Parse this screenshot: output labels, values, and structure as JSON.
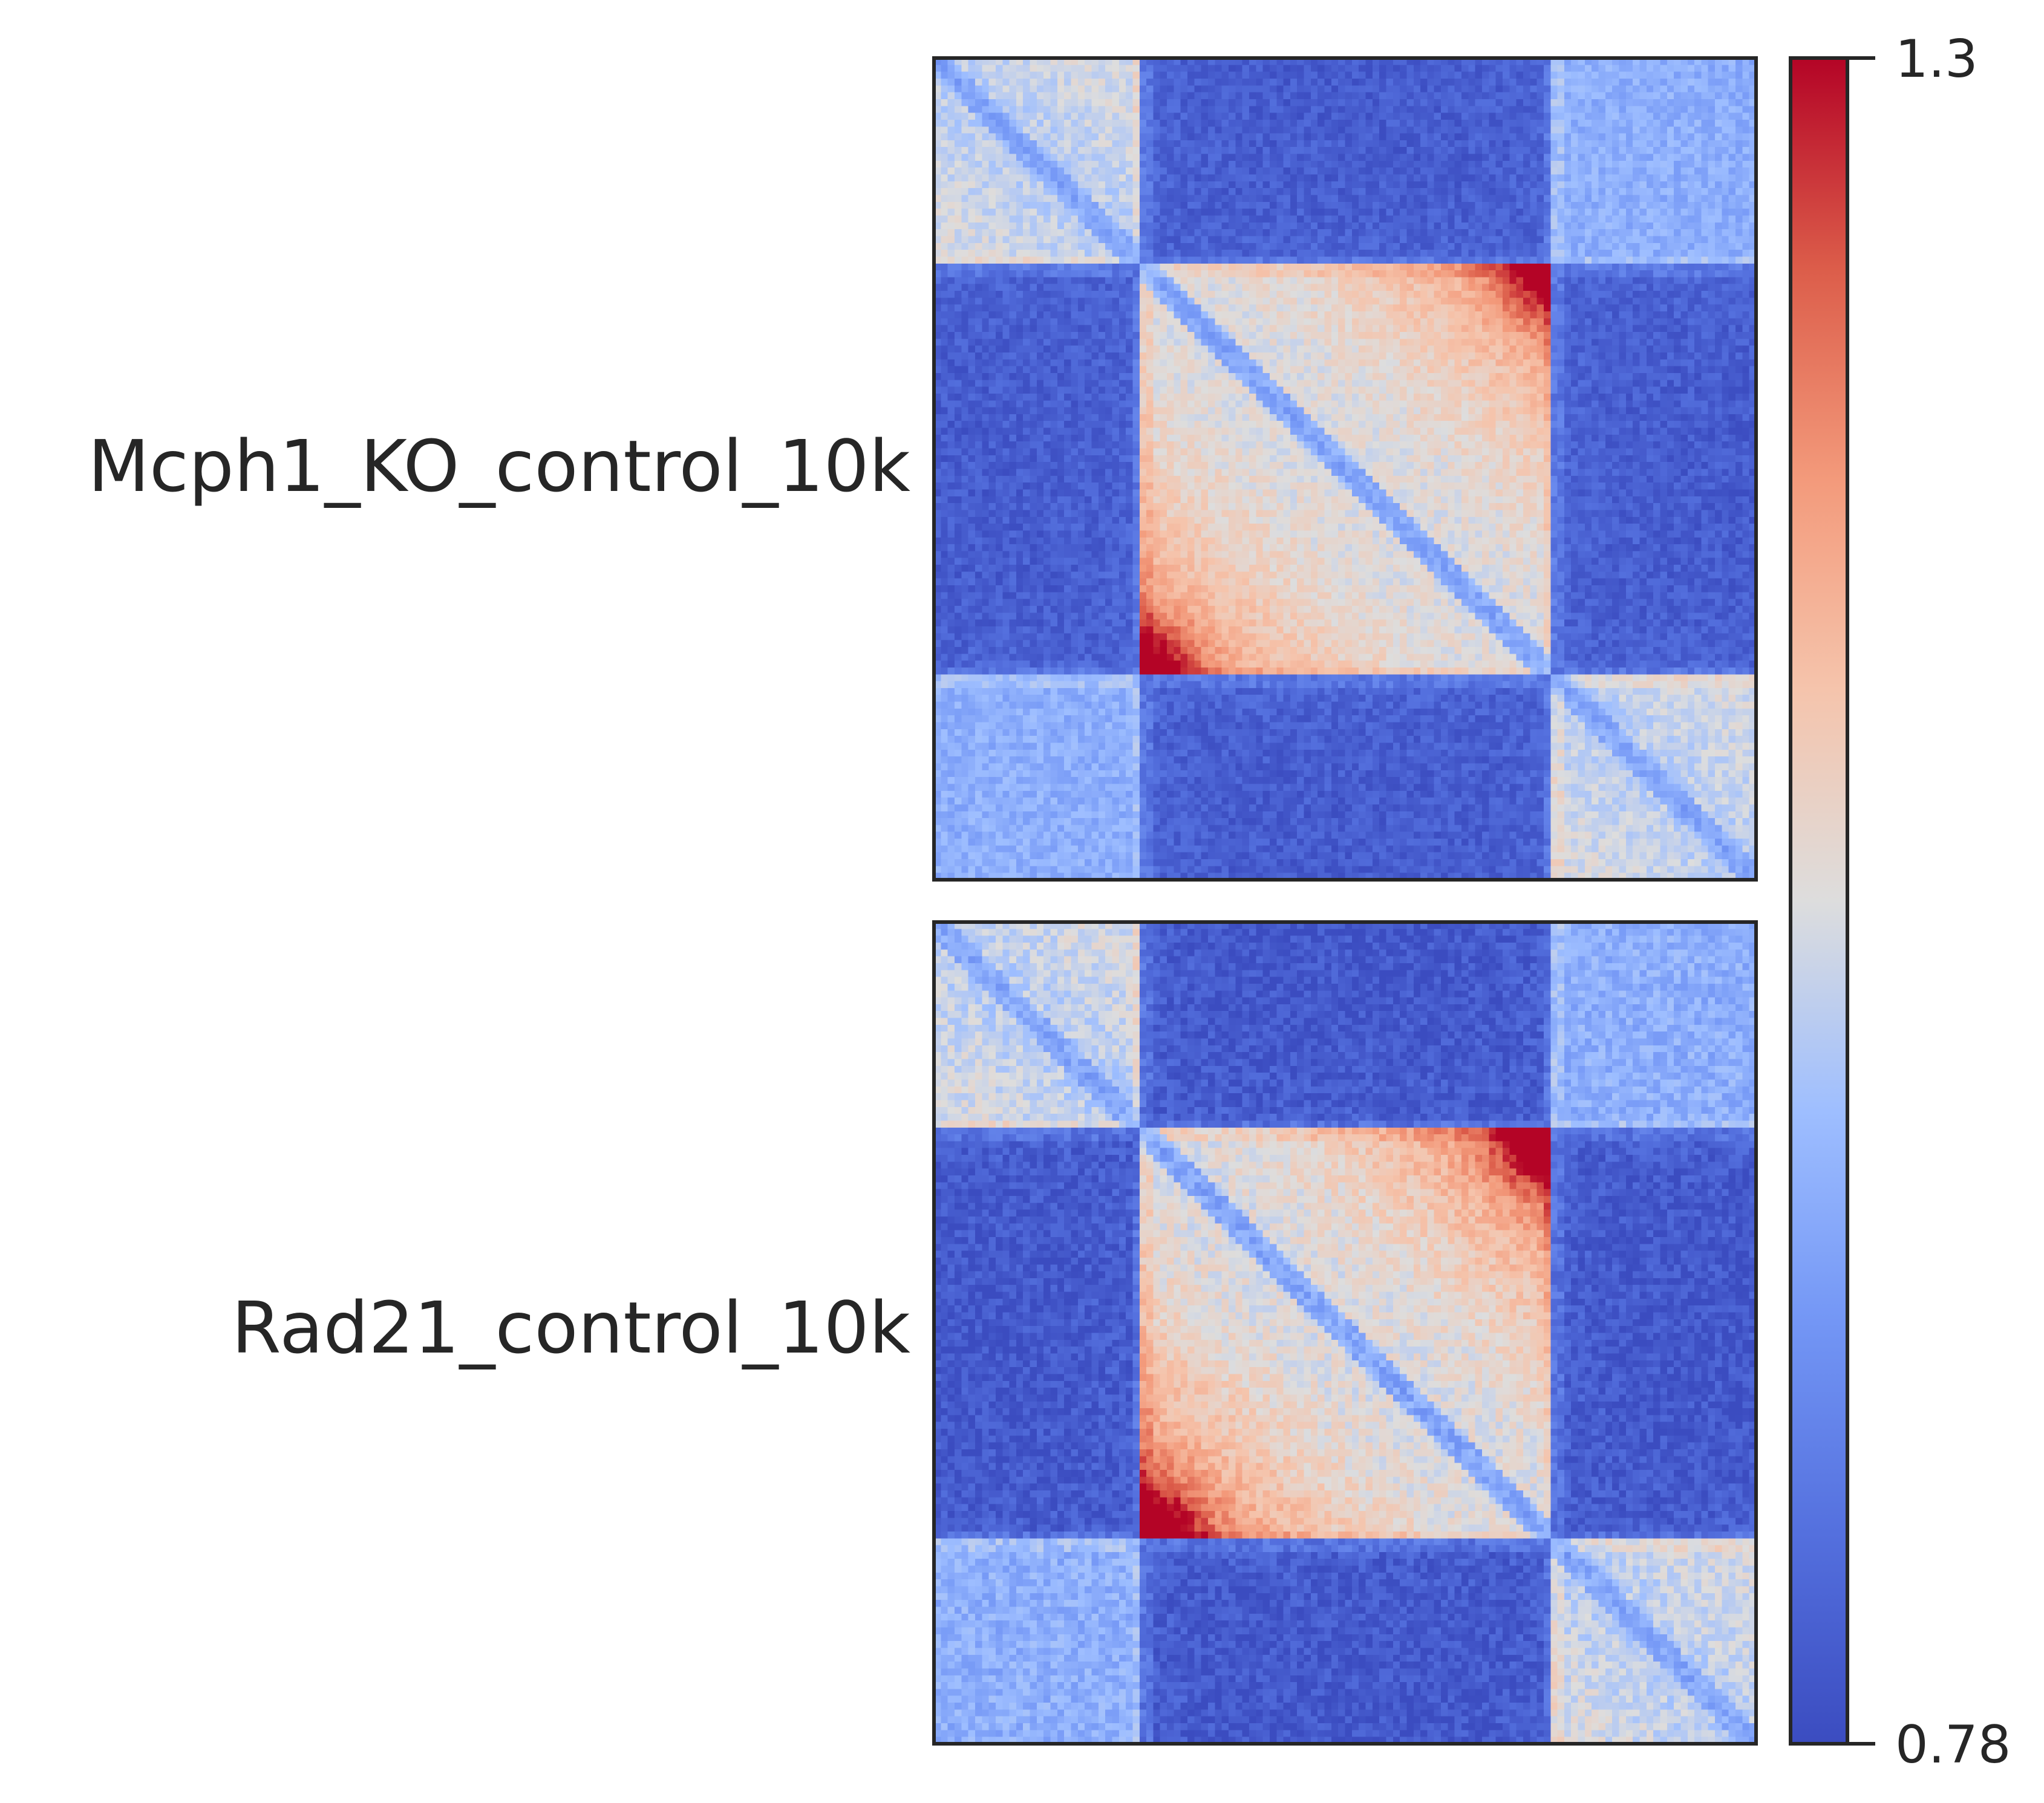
{
  "chart_data": [
    {
      "type": "heatmap",
      "title": "",
      "row_label": "Mcph1_KO_control_10k",
      "matrix_bins": 120,
      "domain_boundaries_bins": [
        30,
        90
      ],
      "peak_value_at_corner_bins": [
        30,
        90
      ],
      "value_range": [
        0.78,
        1.3
      ]
    },
    {
      "type": "heatmap",
      "title": "",
      "row_label": "Rad21_control_10k",
      "matrix_bins": 120,
      "domain_boundaries_bins": [
        30,
        90
      ],
      "peak_value_at_corner_bins": [
        30,
        90
      ],
      "value_range": [
        0.78,
        1.3
      ]
    }
  ],
  "colorbar": {
    "colormap": "coolwarm",
    "min": 0.78,
    "max": 1.3,
    "ticks": [
      "1.3",
      "0.78"
    ],
    "colors": {
      "low": "#3b4cc0",
      "mid": "#dddddd",
      "high": "#b40426"
    }
  }
}
